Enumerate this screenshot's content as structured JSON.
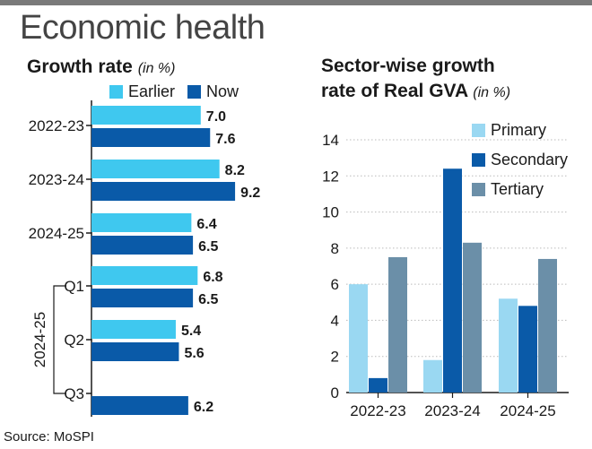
{
  "header": {
    "title": "Economic health"
  },
  "source": "Source: MoSPI",
  "chart_data": [
    {
      "type": "bar",
      "orientation": "horizontal",
      "title": "Growth rate",
      "unit": "(in %)",
      "categories": [
        "2022-23",
        "2023-24",
        "2024-25",
        "Q1",
        "Q2",
        "Q3"
      ],
      "group_label": "2024-25",
      "grouped_categories": [
        "Q1",
        "Q2",
        "Q3"
      ],
      "series": [
        {
          "name": "Earlier",
          "color": "#3fc8ef",
          "values": [
            7.0,
            8.2,
            6.4,
            6.8,
            5.4,
            null
          ],
          "labels": [
            "7.0",
            "8.2",
            "6.4",
            "6.8",
            "5.4",
            ""
          ]
        },
        {
          "name": "Now",
          "color": "#0a5aa8",
          "values": [
            7.6,
            9.2,
            6.5,
            6.5,
            5.6,
            6.2
          ],
          "labels": [
            "7.6",
            "9.2",
            "6.5",
            "6.5",
            "5.6",
            "6.2"
          ]
        }
      ],
      "legend": "top"
    },
    {
      "type": "bar",
      "title_line1": "Sector-wise growth",
      "title_line2": "rate of Real GVA",
      "unit": "(in %)",
      "categories": [
        "2022-23",
        "2023-24",
        "2024-25"
      ],
      "series": [
        {
          "name": "Primary",
          "color": "#9ad8f2",
          "values": [
            6.0,
            1.8,
            5.2
          ]
        },
        {
          "name": "Secondary",
          "color": "#0a5aa8",
          "values": [
            0.8,
            12.4,
            4.8
          ]
        },
        {
          "name": "Tertiary",
          "color": "#6b8fa8",
          "values": [
            7.5,
            8.3,
            7.4
          ]
        }
      ],
      "ylim": [
        0,
        14
      ],
      "yticks": [
        "0",
        "2",
        "4",
        "6",
        "8",
        "10",
        "12",
        "14"
      ],
      "grid": true,
      "legend": "top-right"
    }
  ]
}
